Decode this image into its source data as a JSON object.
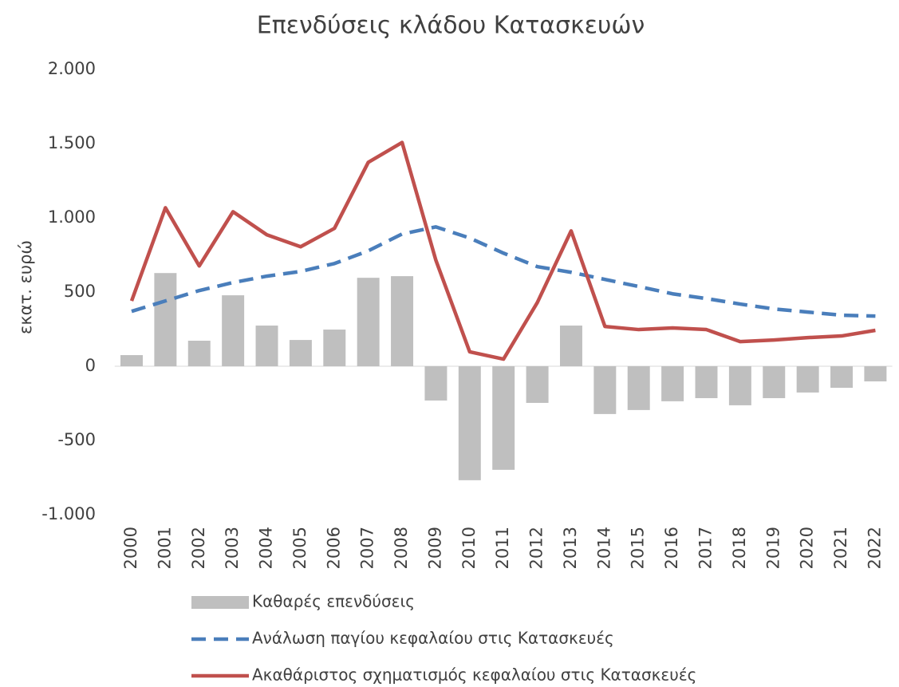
{
  "chart_data": {
    "type": "bar",
    "title": "Επενδύσεις κλάδου Κατασκευών",
    "y_label": "εκατ. ευρώ",
    "categories": [
      "2000",
      "2001",
      "2002",
      "2003",
      "2004",
      "2005",
      "2006",
      "2007",
      "2008",
      "2009",
      "2010",
      "2011",
      "2012",
      "2013",
      "2014",
      "2015",
      "2016",
      "2017",
      "2018",
      "2019",
      "2020",
      "2021",
      "2022"
    ],
    "series": [
      {
        "name": "Καθαρές επενδύσεις",
        "type": "bar",
        "color": "#bfbfbf",
        "values": [
          75,
          628,
          172,
          478,
          274,
          177,
          247,
          596,
          607,
          -231,
          -768,
          -698,
          -247,
          274,
          -322,
          -295,
          -236,
          -215,
          -263,
          -215,
          -177,
          -145,
          -102
        ]
      },
      {
        "name": "Ανάλωση παγίου κεφαλαίου στις Κατασκευές",
        "type": "line",
        "dashed": true,
        "color": "#4a7ebb",
        "values": [
          370,
          440,
          510,
          564,
          607,
          639,
          692,
          778,
          891,
          939,
          864,
          762,
          671,
          633,
          585,
          537,
          488,
          456,
          419,
          386,
          365,
          344,
          338
        ]
      },
      {
        "name": "Ακαθάριστος σχηματισμός κεφαλαίου στις Κατασκευές",
        "type": "line",
        "dashed": false,
        "color": "#c0504d",
        "values": [
          440,
          1068,
          676,
          1041,
          886,
          805,
          929,
          1374,
          1508,
          714,
          97,
          48,
          429,
          912,
          268,
          247,
          258,
          247,
          166,
          177,
          193,
          204,
          242
        ]
      }
    ],
    "ylim": [
      -1000,
      2000
    ],
    "yticks": [
      {
        "value": -1000,
        "label": "-1.000"
      },
      -500,
      0,
      500,
      {
        "value": 1000,
        "label": "1.000"
      },
      {
        "value": 1500,
        "label": "1.500"
      },
      {
        "value": 2000,
        "label": "2.000"
      }
    ],
    "grid": false
  }
}
